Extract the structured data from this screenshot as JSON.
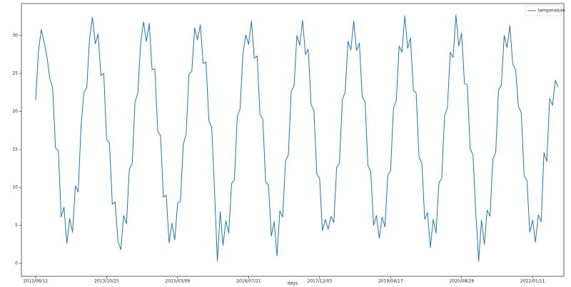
{
  "chart_data": {
    "type": "line",
    "xlabel": "days",
    "legend": "upper right",
    "grid": false,
    "x": [
      0,
      20,
      40,
      60,
      80,
      100,
      120,
      140,
      160,
      180,
      200,
      220,
      240,
      260,
      280,
      300,
      320,
      340,
      360,
      380,
      400,
      420,
      440,
      460,
      480,
      500,
      520,
      540,
      560,
      580,
      600,
      620,
      640,
      660,
      680,
      700,
      720,
      740,
      760,
      780,
      800,
      820,
      840,
      860,
      880,
      900,
      920,
      940,
      960,
      980,
      1000,
      1020,
      1040,
      1060,
      1080,
      1100,
      1120,
      1140,
      1160,
      1180,
      1200,
      1220,
      1240,
      1260,
      1280,
      1300,
      1320,
      1340,
      1360,
      1380,
      1400,
      1420,
      1440,
      1460,
      1480,
      1500,
      1520,
      1540,
      1560,
      1580,
      1600,
      1620,
      1640,
      1660,
      1680,
      1700,
      1720,
      1740,
      1760,
      1780,
      1800,
      1820,
      1840,
      1860,
      1880,
      1900,
      1920,
      1940,
      1960,
      1980,
      2000,
      2020,
      2040,
      2060,
      2080,
      2100,
      2120,
      2140,
      2160,
      2180,
      2200,
      2220,
      2240,
      2260,
      2280,
      2300,
      2320,
      2340,
      2360,
      2380,
      2400,
      2420,
      2440,
      2460,
      2480,
      2500,
      2520,
      2540,
      2560,
      2580,
      2600,
      2620,
      2640,
      2660,
      2680,
      2700,
      2720,
      2740,
      2760,
      2780,
      2800,
      2820,
      2840,
      2860,
      2880,
      2900,
      2920,
      2940,
      2960,
      2980,
      3000,
      3020,
      3040,
      3060,
      3080,
      3100,
      3120,
      3140,
      3160,
      3180,
      3200,
      3220,
      3240,
      3260,
      3280,
      3300,
      3320,
      3340,
      3360,
      3380,
      3400,
      3420,
      3440,
      3460,
      3480,
      3500,
      3520,
      3540,
      3560,
      3580,
      3600,
      3620,
      3640,
      3660,
      3680
    ],
    "series": [
      {
        "name": "temperature",
        "color": "#1f77b4",
        "values": [
          21.5,
          27.9,
          30.8,
          29.1,
          27.2,
          24.3,
          23.1,
          15.2,
          14.8,
          6.1,
          7.4,
          2.6,
          5.9,
          4.1,
          10.2,
          9.4,
          18.0,
          22.5,
          23.1,
          29.6,
          32.4,
          28.9,
          30.2,
          24.7,
          25.0,
          16.3,
          15.9,
          7.8,
          8.1,
          2.9,
          1.8,
          6.3,
          5.2,
          12.4,
          13.1,
          21.2,
          22.4,
          29.0,
          31.8,
          29.2,
          31.6,
          25.5,
          25.6,
          17.4,
          16.8,
          8.7,
          9.0,
          2.7,
          5.3,
          3.1,
          7.9,
          8.2,
          15.7,
          17.0,
          24.9,
          25.3,
          31.0,
          29.4,
          31.4,
          26.3,
          26.5,
          18.8,
          17.9,
          9.5,
          0.3,
          6.8,
          2.4,
          5.6,
          4.0,
          10.5,
          11.0,
          19.3,
          20.4,
          27.6,
          30.1,
          28.8,
          31.9,
          27.0,
          27.3,
          19.6,
          19.0,
          10.7,
          10.3,
          3.6,
          5.5,
          1.0,
          6.9,
          6.1,
          13.5,
          14.3,
          22.6,
          23.4,
          30.0,
          28.7,
          32.0,
          27.5,
          28.2,
          20.9,
          20.1,
          11.8,
          11.2,
          4.3,
          5.8,
          4.5,
          6.2,
          5.4,
          12.6,
          13.2,
          21.5,
          22.6,
          29.2,
          28.1,
          31.9,
          28.0,
          29.0,
          21.9,
          21.3,
          12.9,
          12.1,
          5.0,
          6.3,
          3.3,
          6.1,
          4.8,
          11.6,
          12.2,
          20.4,
          21.5,
          28.6,
          27.8,
          32.6,
          28.3,
          29.7,
          22.8,
          22.4,
          14.0,
          13.2,
          5.8,
          6.7,
          2.1,
          5.8,
          4.0,
          10.6,
          11.2,
          19.4,
          20.5,
          27.8,
          27.1,
          32.7,
          28.6,
          30.3,
          23.7,
          23.5,
          15.1,
          14.3,
          6.6,
          0.3,
          5.7,
          2.5,
          7.0,
          6.2,
          13.7,
          14.6,
          22.8,
          23.5,
          30.0,
          28.4,
          31.3,
          26.2,
          25.5,
          20.7,
          19.8,
          11.6,
          10.9,
          4.1,
          5.7,
          2.8,
          6.4,
          5.5,
          14.6,
          13.4,
          21.7,
          20.8,
          24.1,
          23.2
        ]
      }
    ],
    "xlim": [
      -100,
      3720
    ],
    "xticks": [
      {
        "value": 0,
        "label": "2012/06/12"
      },
      {
        "value": 500,
        "label": "2013/10/25"
      },
      {
        "value": 1000,
        "label": "2015/03/09"
      },
      {
        "value": 1500,
        "label": "2016/07/21"
      },
      {
        "value": 2000,
        "label": "2017/12/03"
      },
      {
        "value": 2500,
        "label": "2019/04/17"
      },
      {
        "value": 3000,
        "label": "2020/08/29"
      },
      {
        "value": 3500,
        "label": "2022/01/11"
      }
    ],
    "ylim": [
      -1.7,
      34.2
    ],
    "yticks": [
      0,
      5,
      10,
      15,
      20,
      25,
      30
    ]
  }
}
